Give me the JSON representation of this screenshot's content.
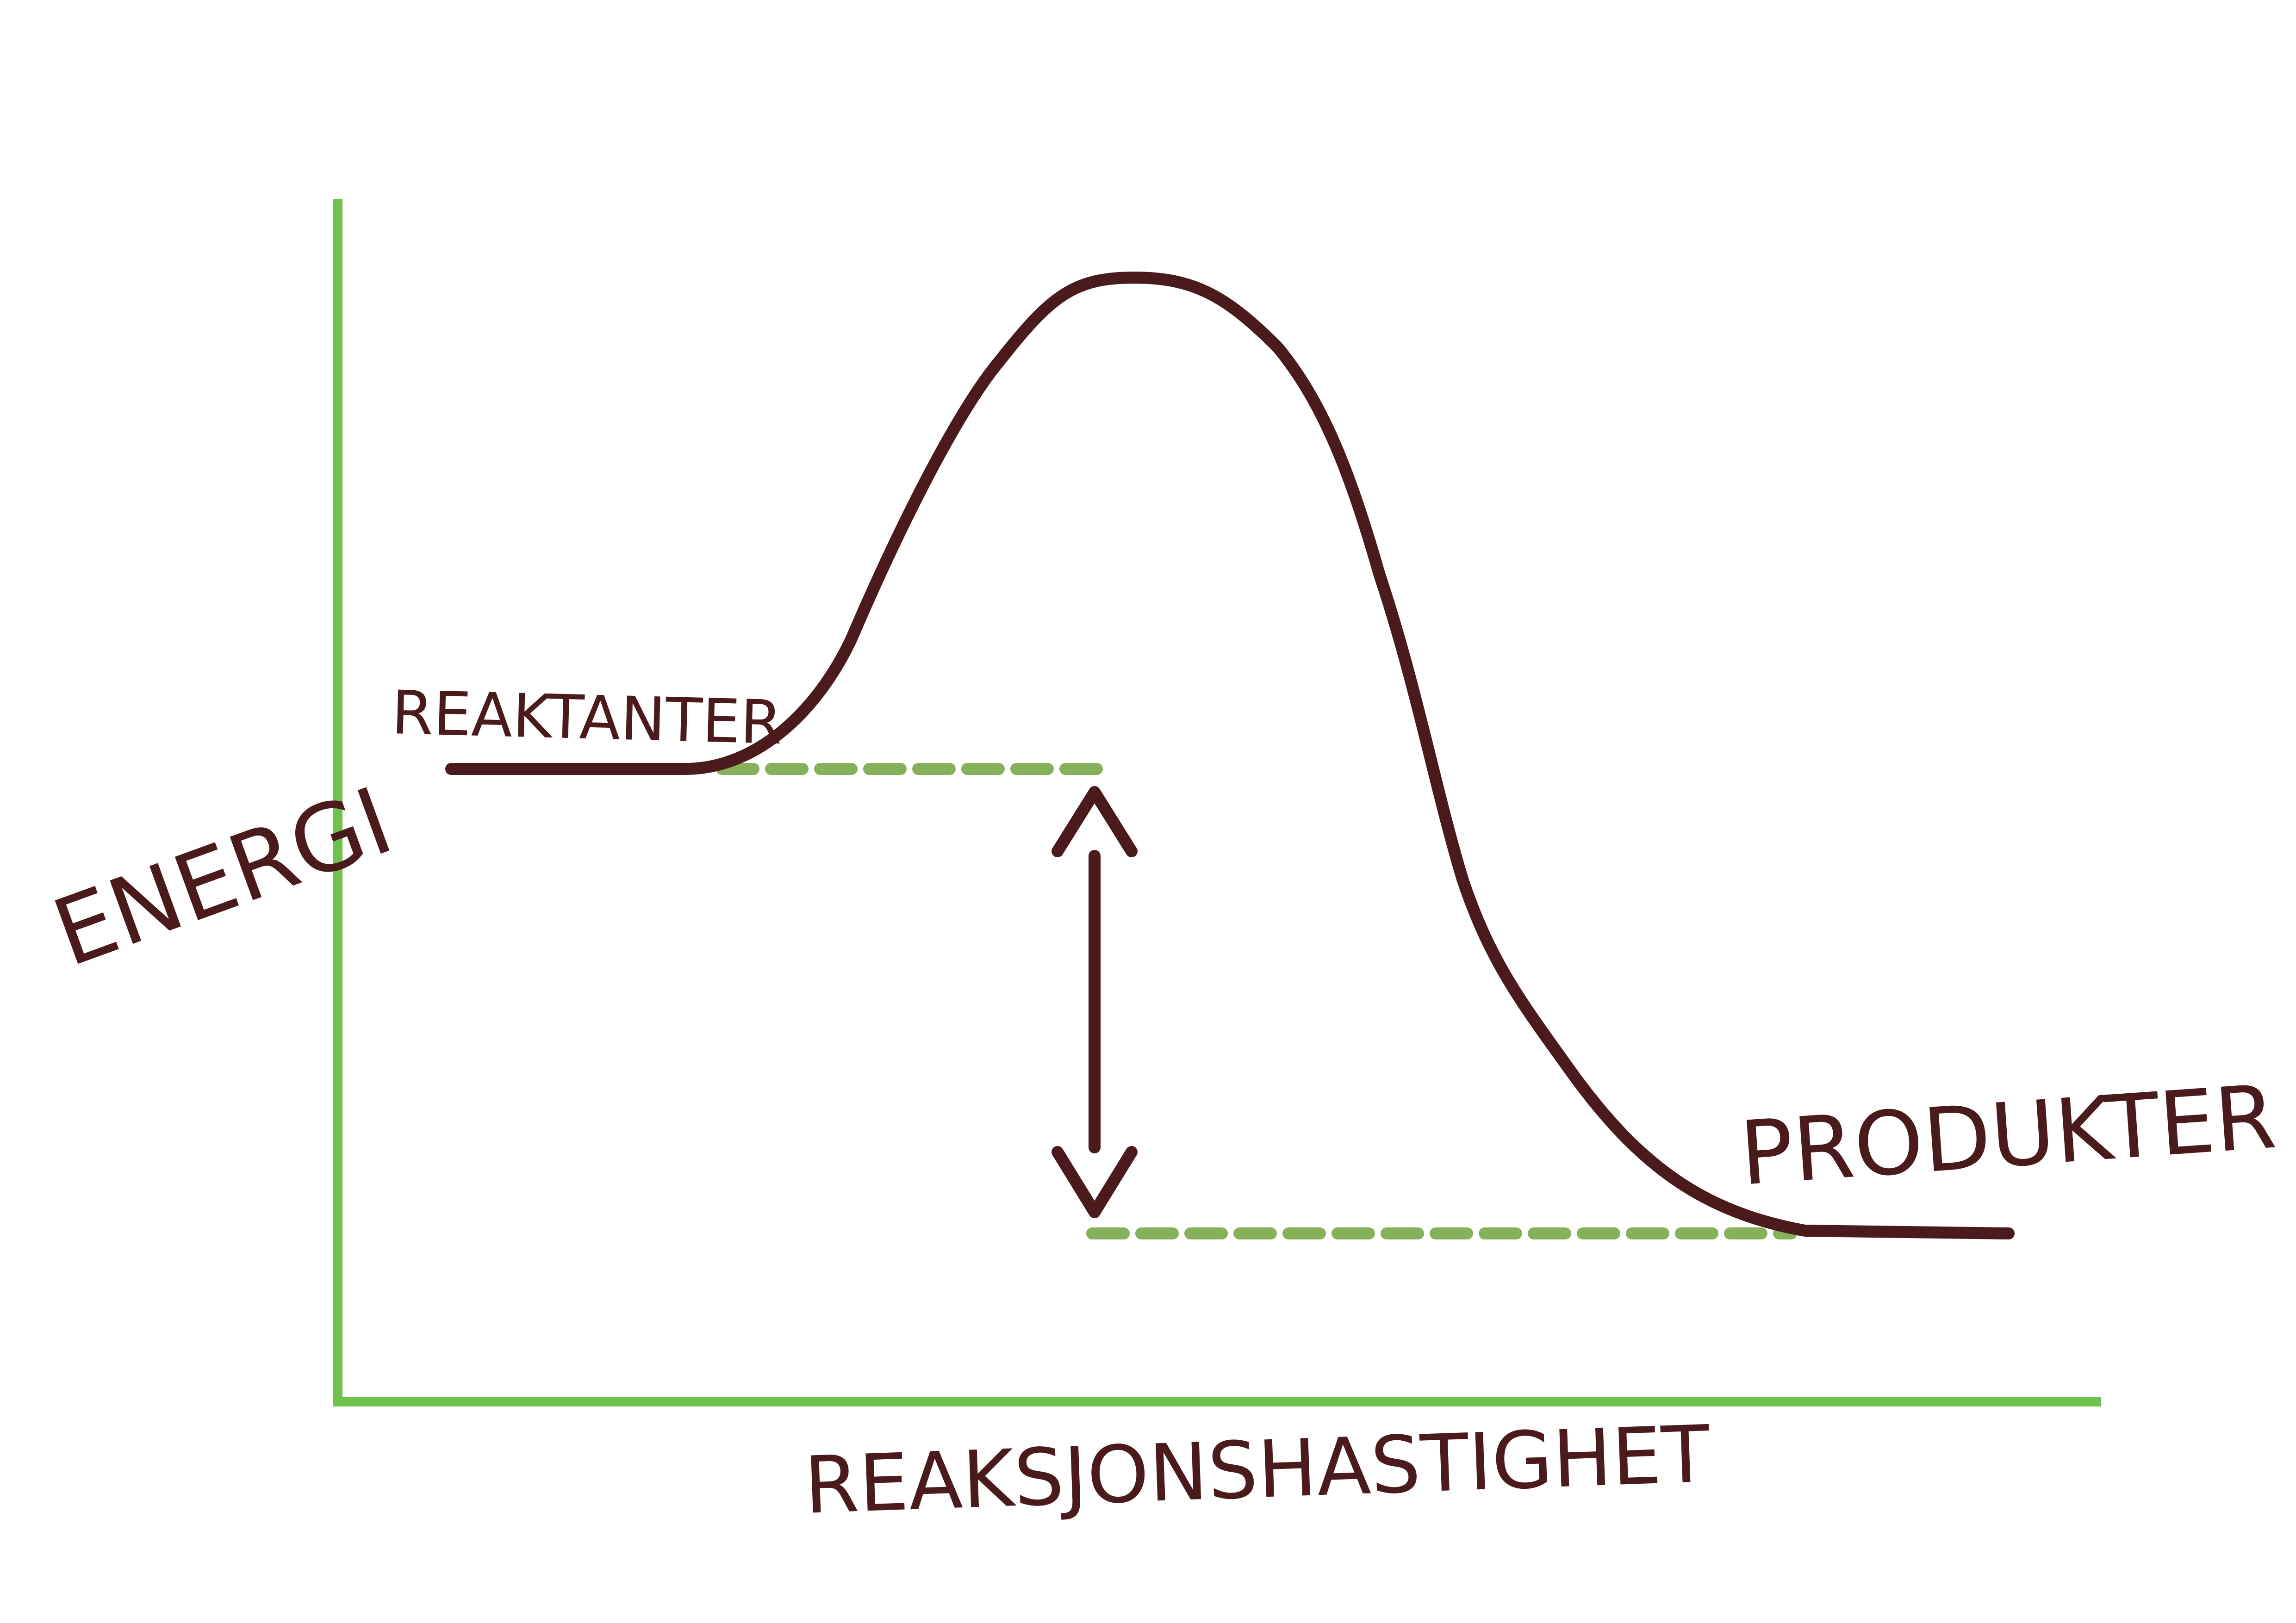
{
  "labels": {
    "reactants": "REAKTANTER",
    "products": "PRODUKTER",
    "y_axis": "ENERGI",
    "x_axis": "REAKSJONSHASTIGHET"
  },
  "colors": {
    "axis": "#6cc24a",
    "curve": "#4a1a1c",
    "guide": "#86b05a",
    "label": "#4a1a1c"
  }
}
